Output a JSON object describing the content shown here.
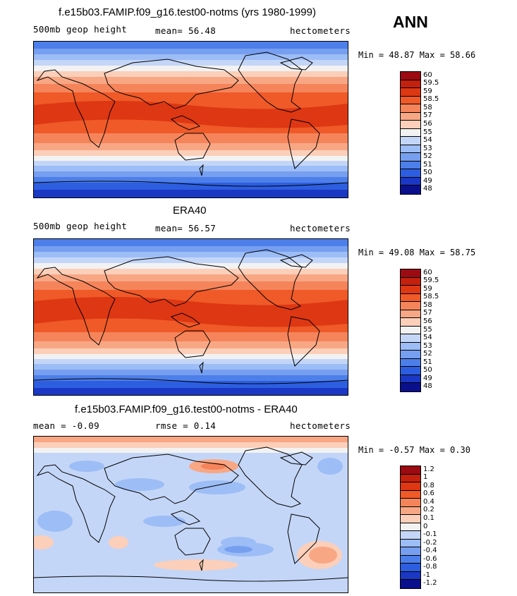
{
  "season": "ANN",
  "panels": [
    {
      "title": "f.e15b03.FAMIP.f09_g16.test00-notms (yrs 1980-1999)",
      "left_text": "500mb geop height",
      "mid_text": "mean=  56.48",
      "right_text": "hectometers",
      "minmax_text": "Min =  48.87 Max =  58.66",
      "colorbar": {
        "labels": [
          "60",
          "59.5",
          "59",
          "58.5",
          "58",
          "57",
          "56",
          "55",
          "54",
          "53",
          "52",
          "51",
          "50",
          "49",
          "48"
        ],
        "colors": [
          "#9c0a12",
          "#c4200e",
          "#de3713",
          "#ef5a28",
          "#f5845b",
          "#f8a785",
          "#fbcfb9",
          "#f2f2f2",
          "#c4d6f7",
          "#9dbdf6",
          "#779ff0",
          "#4d7fea",
          "#2d5ee0",
          "#1a38c4",
          "#0a0f8c"
        ]
      }
    },
    {
      "title": "ERA40",
      "left_text": "500mb geop height",
      "mid_text": "mean=  56.57",
      "right_text": "hectometers",
      "minmax_text": "Min =  49.08 Max =  58.75",
      "colorbar": {
        "labels": [
          "60",
          "59.5",
          "59",
          "58.5",
          "58",
          "57",
          "56",
          "55",
          "54",
          "53",
          "52",
          "51",
          "50",
          "49",
          "48"
        ],
        "colors": [
          "#9c0a12",
          "#c4200e",
          "#de3713",
          "#ef5a28",
          "#f5845b",
          "#f8a785",
          "#fbcfb9",
          "#f2f2f2",
          "#c4d6f7",
          "#9dbdf6",
          "#779ff0",
          "#4d7fea",
          "#2d5ee0",
          "#1a38c4",
          "#0a0f8c"
        ]
      }
    },
    {
      "title": "f.e15b03.FAMIP.f09_g16.test00-notms - ERA40",
      "left_text": "mean =  -0.09",
      "mid_text": "rmse =   0.14",
      "right_text": "hectometers",
      "minmax_text": "Min =  -0.57 Max =   0.30",
      "colorbar": {
        "labels": [
          "1.2",
          "1",
          "0.8",
          "0.6",
          "0.4",
          "0.2",
          "0.1",
          "0",
          "-0.1",
          "-0.2",
          "-0.4",
          "-0.6",
          "-0.8",
          "-1",
          "-1.2"
        ],
        "colors": [
          "#9c0a12",
          "#c4200e",
          "#de3713",
          "#ef5a28",
          "#f5845b",
          "#f8a785",
          "#fbcfb9",
          "#f2f2f2",
          "#c4d6f7",
          "#9dbdf6",
          "#779ff0",
          "#4d7fea",
          "#2d5ee0",
          "#1a38c4",
          "#0a0f8c"
        ]
      }
    }
  ]
}
